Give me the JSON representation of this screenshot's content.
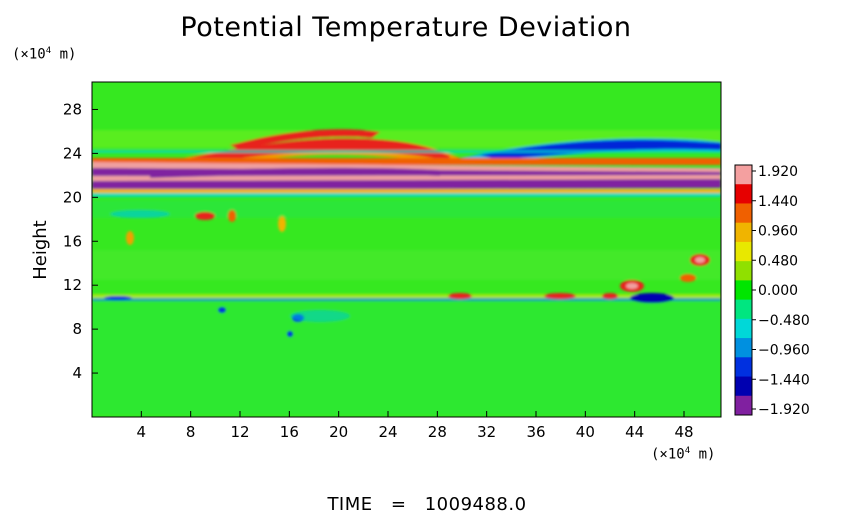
{
  "chart_data": {
    "type": "heatmap",
    "title": "Potential Temperature Deviation",
    "ylabel": "Height",
    "x_unit_label": "(×10⁴ m)",
    "y_unit_label": "(×10⁴ m)",
    "xlim": [
      0,
      51
    ],
    "ylim": [
      0,
      30.5
    ],
    "x_ticks": [
      4,
      8,
      12,
      16,
      20,
      24,
      28,
      32,
      36,
      40,
      44,
      48
    ],
    "y_ticks": [
      4,
      8,
      12,
      16,
      20,
      24,
      28
    ],
    "colorbar": {
      "labels": [
        "1.920",
        "1.440",
        "0.960",
        "0.480",
        "0.000",
        "−0.480",
        "−0.960",
        "−1.440",
        "−1.920"
      ],
      "range": [
        -1.92,
        1.92
      ],
      "colors": [
        "#f4a0a0",
        "#e60000",
        "#f06000",
        "#f0b400",
        "#e8e800",
        "#90e000",
        "#00e600",
        "#00e680",
        "#00d8d8",
        "#0090e0",
        "#0030e0",
        "#0000b0",
        "#8020a0"
      ]
    },
    "features": [
      {
        "kind": "band",
        "y": 20.8,
        "value": -1.92
      },
      {
        "kind": "band",
        "y": 21.5,
        "value": 1.92
      },
      {
        "kind": "band",
        "y": 22.3,
        "value": -1.92
      },
      {
        "kind": "band",
        "y": 23.6,
        "value": 1.2
      },
      {
        "kind": "band",
        "y": 24.3,
        "value": -1.2
      },
      {
        "kind": "band",
        "y": 10.5,
        "value": -0.9
      },
      {
        "kind": "band",
        "y": 11.0,
        "value": 0.9
      }
    ]
  },
  "footer": {
    "label": "TIME",
    "equals": "=",
    "value": "1009488.0"
  }
}
